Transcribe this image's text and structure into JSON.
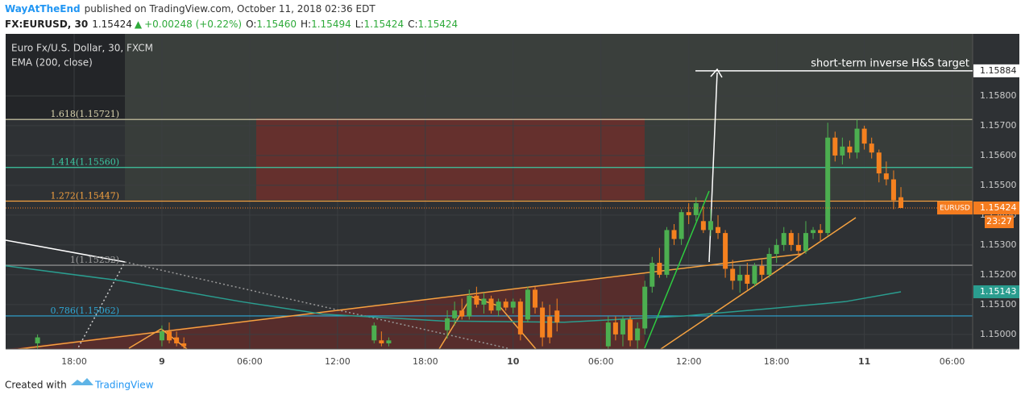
{
  "header": {
    "author": "WayAtTheEnd",
    "published": "published on TradingView.com, October 11, 2018 02:36 EDT",
    "symbol": "FX:EURUSD, 30",
    "last": "1.15424",
    "arrow": "▲",
    "change": "+0.00248 (+0.22%)",
    "ohlc": [
      {
        "k": "O:",
        "v": "1.15460"
      },
      {
        "k": "H:",
        "v": "1.15494"
      },
      {
        "k": "L:",
        "v": "1.15424"
      },
      {
        "k": "C:",
        "v": "1.15424"
      }
    ]
  },
  "footer": {
    "created": "Created with",
    "brand": "TradingView"
  },
  "chart_data": {
    "type": "candlestick",
    "title": "Euro Fx/U.S. Dollar, 30, FXCM",
    "xlim": [
      -4.68,
      61.4
    ],
    "xticks": [
      {
        "value": 0,
        "label": "18:00"
      },
      {
        "value": 6,
        "label": "9"
      },
      {
        "value": 12,
        "label": "06:00"
      },
      {
        "value": 18,
        "label": "12:00"
      },
      {
        "value": 24,
        "label": "18:00"
      },
      {
        "value": 30,
        "label": "10"
      },
      {
        "value": 36,
        "label": "06:00"
      },
      {
        "value": 42,
        "label": "12:00"
      },
      {
        "value": 48,
        "label": "18:00"
      },
      {
        "value": 54,
        "label": "11"
      },
      {
        "value": 60,
        "label": "06:00"
      }
    ],
    "ylim": [
      1.14951,
      1.16008
    ],
    "yticks": [
      {
        "value": 1.158,
        "label": "1.15800"
      },
      {
        "value": 1.157,
        "label": "1.15700"
      },
      {
        "value": 1.156,
        "label": "1.15600"
      },
      {
        "value": 1.155,
        "label": "1.15500"
      },
      {
        "value": 1.154,
        "label": "1.15400"
      },
      {
        "value": 1.153,
        "label": "1.15300"
      },
      {
        "value": 1.152,
        "label": "1.15200"
      },
      {
        "value": 1.151,
        "label": "1.15100"
      },
      {
        "value": 1.15,
        "label": "1.15000"
      }
    ],
    "up_color": "#4caf50",
    "down_color": "#f5811f",
    "candles": {
      "x": [
        -2.5,
        6,
        6.5,
        7,
        7.5,
        20.5,
        21,
        21.5,
        25.5,
        26,
        26.5,
        27,
        27.5,
        28,
        28.5,
        29,
        29.5,
        30,
        30.5,
        31,
        31.5,
        32,
        32.5,
        33,
        36.5,
        37,
        37.5,
        38,
        38.5,
        39,
        39.5,
        40,
        40.5,
        41,
        41.5,
        42,
        42.5,
        43,
        43.5,
        44,
        44.5,
        45,
        45.5,
        46,
        46.5,
        47,
        47.5,
        48,
        48.5,
        49,
        49.5,
        50,
        50.5,
        51,
        51.5,
        52,
        52.5,
        53,
        53.5,
        54,
        54.5,
        55,
        55.5,
        56,
        56.5
      ],
      "open": [
        1.1497,
        1.1498,
        1.1501,
        1.1499,
        1.1497,
        1.1498,
        1.1498,
        1.1497,
        1.15014,
        1.15054,
        1.1508,
        1.1506,
        1.1513,
        1.151,
        1.1512,
        1.1508,
        1.1511,
        1.1509,
        1.1511,
        1.1505,
        1.1515,
        1.1509,
        1.1506,
        1.1508,
        1.1496,
        1.1504,
        1.15,
        1.1505,
        1.1498,
        1.1502,
        1.1516,
        1.1524,
        1.152,
        1.1535,
        1.1532,
        1.1541,
        1.154,
        1.1538,
        1.1535,
        1.1536,
        1.1534,
        1.1522,
        1.1518,
        1.152,
        1.1517,
        1.1523,
        1.152,
        1.1527,
        1.153,
        1.1534,
        1.153,
        1.1528,
        1.1534,
        1.1535,
        1.1534,
        1.1566,
        1.156,
        1.1563,
        1.1561,
        1.1569,
        1.1564,
        1.1561,
        1.1554,
        1.1552,
        1.1546
      ],
      "high": [
        1.15,
        1.1503,
        1.1504,
        1.1501,
        1.1499,
        1.1504,
        1.1501,
        1.1499,
        1.15081,
        1.1511,
        1.1512,
        1.1515,
        1.1516,
        1.1514,
        1.1513,
        1.1512,
        1.1512,
        1.1512,
        1.1512,
        1.1516,
        1.1516,
        1.1511,
        1.151,
        1.1512,
        1.1506,
        1.1506,
        1.1506,
        1.1506,
        1.1504,
        1.1518,
        1.1526,
        1.1529,
        1.1536,
        1.1537,
        1.1542,
        1.1544,
        1.1546,
        1.1543,
        1.1542,
        1.154,
        1.1535,
        1.1525,
        1.1523,
        1.1524,
        1.1524,
        1.1525,
        1.1529,
        1.1532,
        1.1536,
        1.1535,
        1.1534,
        1.1538,
        1.1536,
        1.1537,
        1.1571,
        1.1568,
        1.1566,
        1.1565,
        1.1572,
        1.157,
        1.1566,
        1.1562,
        1.1558,
        1.1555,
        1.15494
      ],
      "low": [
        1.1495,
        1.1496,
        1.1497,
        1.1496,
        1.1495,
        1.1497,
        1.1496,
        1.1496,
        1.14986,
        1.1503,
        1.1505,
        1.1505,
        1.1509,
        1.1507,
        1.1507,
        1.1506,
        1.1508,
        1.1507,
        1.1498,
        1.1504,
        1.1507,
        1.1496,
        1.1497,
        1.1501,
        1.1495,
        1.1498,
        1.1496,
        1.1496,
        1.1495,
        1.15,
        1.1514,
        1.1519,
        1.1519,
        1.153,
        1.153,
        1.1537,
        1.1538,
        1.1534,
        1.1533,
        1.1532,
        1.1519,
        1.1515,
        1.1514,
        1.1515,
        1.1516,
        1.1518,
        1.1519,
        1.1524,
        1.1528,
        1.1528,
        1.1526,
        1.1527,
        1.1532,
        1.1531,
        1.1533,
        1.1558,
        1.1557,
        1.1559,
        1.1559,
        1.1562,
        1.1559,
        1.1551,
        1.155,
        1.1542,
        1.15424
      ],
      "close": [
        1.1499,
        1.1501,
        1.1498,
        1.1497,
        1.1496,
        1.1503,
        1.1497,
        1.1498,
        1.15054,
        1.1508,
        1.1506,
        1.1513,
        1.151,
        1.1512,
        1.1508,
        1.1511,
        1.1509,
        1.1511,
        1.15,
        1.1515,
        1.1509,
        1.1499,
        1.1499,
        1.1504,
        1.1504,
        1.15,
        1.1505,
        1.1498,
        1.1502,
        1.1516,
        1.1524,
        1.152,
        1.1535,
        1.1532,
        1.1541,
        1.154,
        1.1544,
        1.1535,
        1.1538,
        1.1534,
        1.1522,
        1.1518,
        1.152,
        1.1517,
        1.1523,
        1.152,
        1.1527,
        1.153,
        1.1534,
        1.153,
        1.1528,
        1.1534,
        1.1535,
        1.1534,
        1.1566,
        1.156,
        1.1563,
        1.1561,
        1.1569,
        1.1564,
        1.1561,
        1.1554,
        1.1552,
        1.1545,
        1.15424
      ]
    },
    "ema": {
      "name": "EMA (200, close)",
      "color": "#2a9d8f",
      "x": [
        -4.68,
        3.2,
        11.4,
        17,
        25.2,
        33.5,
        41.7,
        47.2,
        52.7,
        56.5
      ],
      "values": [
        1.1523,
        1.1518,
        1.1511,
        1.15068,
        1.15045,
        1.15041,
        1.15062,
        1.15085,
        1.1511,
        1.15143
      ],
      "value_label": "1.15143"
    },
    "fib_levels": [
      {
        "label": "1.618(1.15721)",
        "value": 1.15721,
        "color": "#d8d2ad"
      },
      {
        "label": "1.414(1.15560)",
        "value": 1.1556,
        "color": "#3cc8a2"
      },
      {
        "label": "1.272(1.15447)",
        "value": 1.15447,
        "color": "#f6a240"
      },
      {
        "label": "1(1.15232)",
        "value": 1.15232,
        "color": "#9e9e9e"
      },
      {
        "label": "0.786(1.15062)",
        "value": 1.15062,
        "color": "#2ea8d6"
      }
    ],
    "target": {
      "value": 1.15884,
      "value_label": "1.15884",
      "text": "short-term inverse H&S target"
    },
    "last_price": {
      "name": "EURUSD",
      "value": 1.15424,
      "value_label": "1.15424",
      "countdown": "23:27",
      "color": "#f57c1f"
    }
  }
}
